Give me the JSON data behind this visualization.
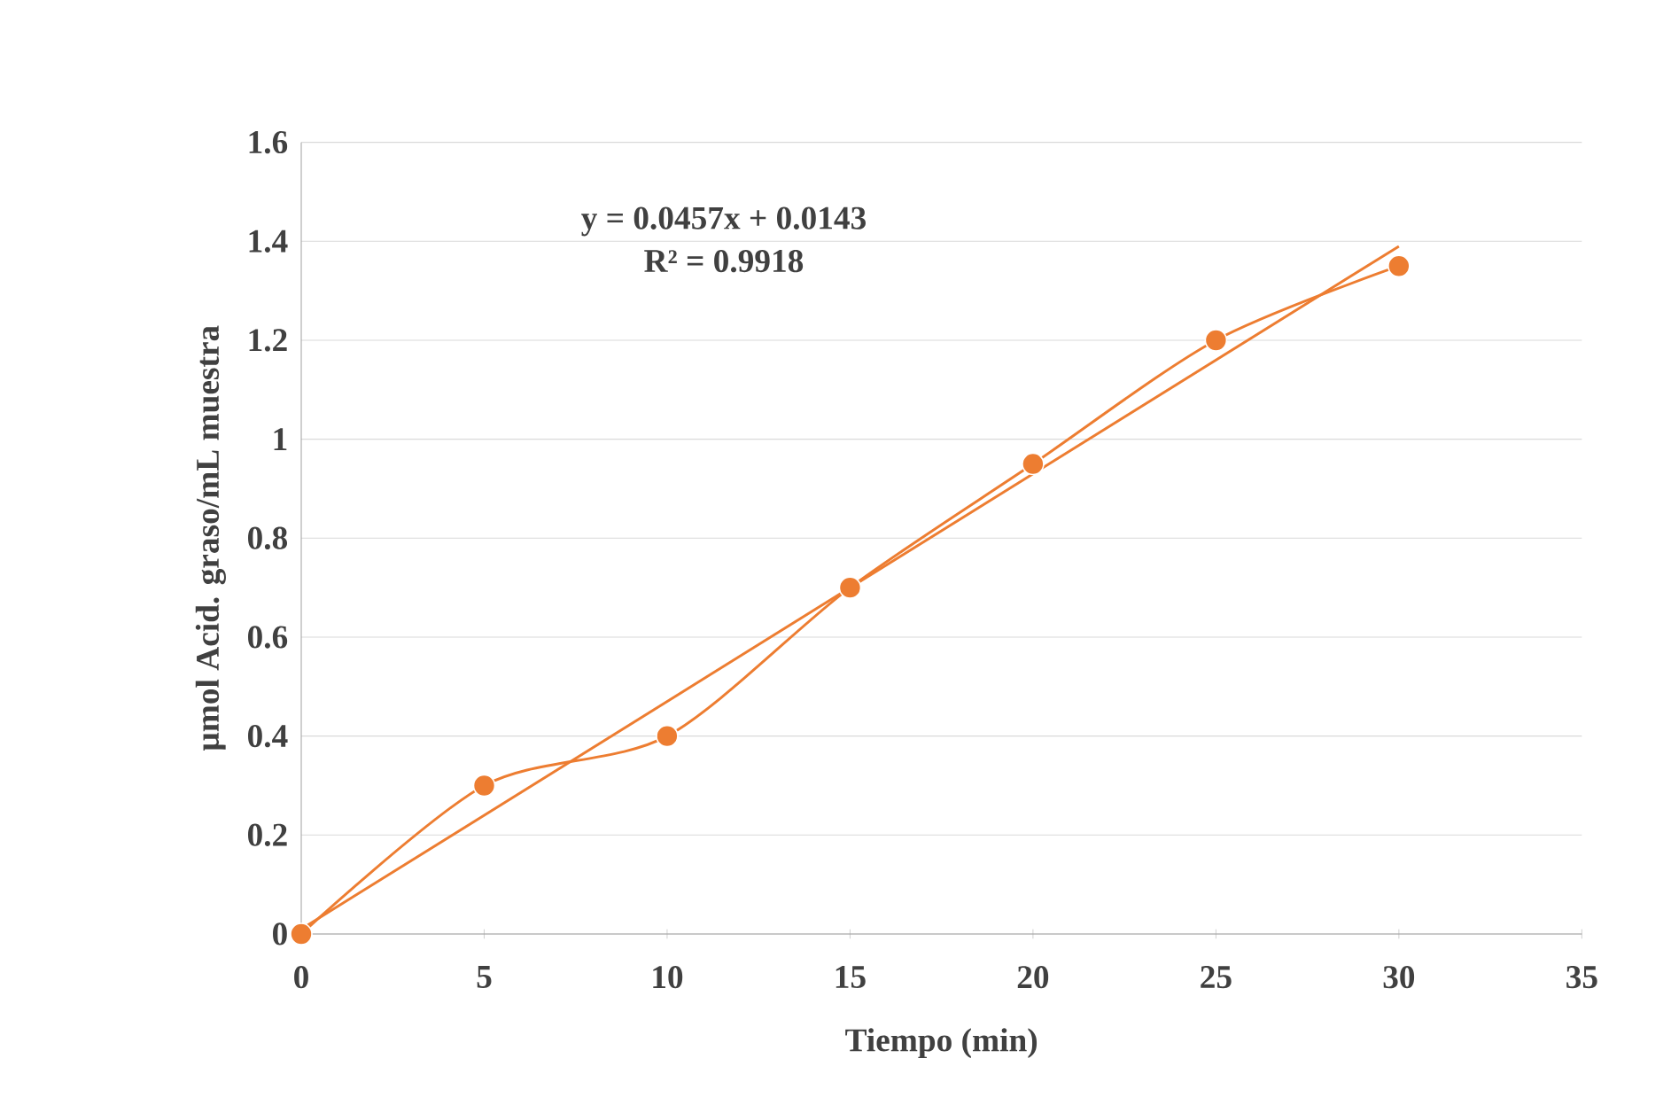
{
  "chart_data": {
    "type": "line",
    "xlabel": "Tiempo (min)",
    "ylabel": "µmol Acid. graso/mL muestra",
    "x": [
      0,
      5,
      10,
      15,
      20,
      25,
      30
    ],
    "series": [
      {
        "color": "#ed7d31",
        "marker": "circle",
        "values": [
          0,
          0.3,
          0.4,
          0.7,
          0.95,
          1.2,
          1.35
        ]
      },
      {
        "type": "line",
        "color": "#ed7d31",
        "marker": "none",
        "x": [
          0,
          30
        ],
        "values": [
          0.01,
          1.39
        ]
      }
    ],
    "annotations": [
      "y = 0.0457x + 0.0143",
      "R² = 0.9918"
    ],
    "xlim": [
      0,
      35
    ],
    "xticks": [
      0,
      5,
      10,
      15,
      20,
      25,
      30,
      35
    ],
    "ylim": [
      0,
      1.6
    ],
    "yticks": [
      0,
      0.2,
      0.4,
      0.6,
      0.8,
      1,
      1.2,
      1.4,
      1.6
    ],
    "grid": "y"
  }
}
